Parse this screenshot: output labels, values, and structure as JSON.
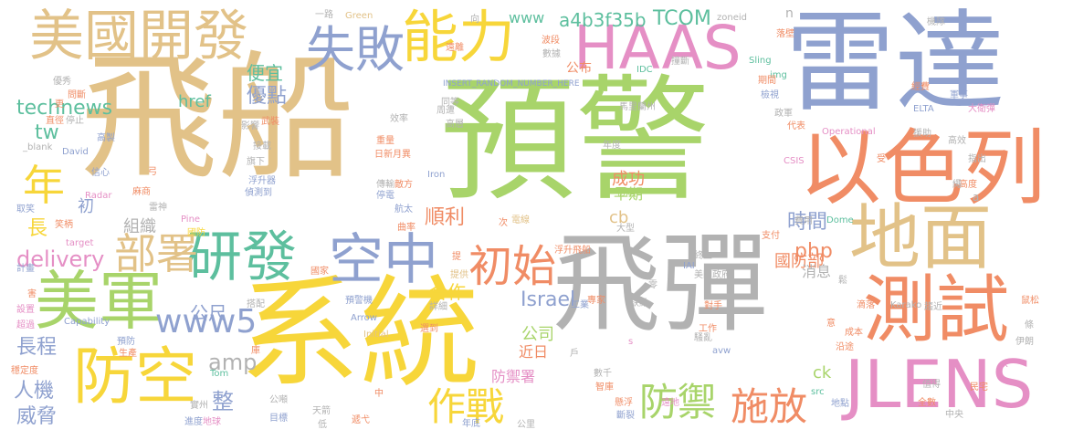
{
  "cloud": {
    "palette": {
      "green": "#a8d46a",
      "blue": "#8fa1cf",
      "orange": "#f08c65",
      "tan": "#e2c288",
      "gray": "#b2b2b2",
      "yellow": "#f7d63a",
      "pink": "#e58fc5",
      "teal": "#5dbf9e"
    },
    "words": [
      {
        "text": "飛船",
        "color": "tan"
      },
      {
        "text": "預警",
        "color": "green"
      },
      {
        "text": "雷達",
        "color": "blue"
      },
      {
        "text": "系統",
        "color": "yellow"
      },
      {
        "text": "飛彈",
        "color": "gray"
      },
      {
        "text": "以色列",
        "color": "orange"
      },
      {
        "text": "HAAS",
        "color": "pink"
      },
      {
        "text": "美國開發",
        "color": "tan"
      },
      {
        "text": "地面",
        "color": "tan"
      },
      {
        "text": "測試",
        "color": "orange"
      },
      {
        "text": "JLENS",
        "color": "pink"
      },
      {
        "text": "能力",
        "color": "yellow"
      },
      {
        "text": "失敗",
        "color": "blue"
      },
      {
        "text": "美軍",
        "color": "green"
      },
      {
        "text": "防空",
        "color": "yellow"
      },
      {
        "text": "研發",
        "color": "teal"
      },
      {
        "text": "空中",
        "color": "blue"
      },
      {
        "text": "部署",
        "color": "tan"
      },
      {
        "text": "初始",
        "color": "orange"
      },
      {
        "text": "年",
        "color": "yellow"
      },
      {
        "text": "作戰",
        "color": "yellow"
      },
      {
        "text": "防禦",
        "color": "green"
      },
      {
        "text": "施放",
        "color": "orange"
      },
      {
        "text": "www5",
        "color": "blue"
      },
      {
        "text": "technews",
        "color": "teal"
      },
      {
        "text": "tw",
        "color": "teal"
      },
      {
        "text": "delivery",
        "color": "pink"
      },
      {
        "text": "長程",
        "color": "blue"
      },
      {
        "text": "人機",
        "color": "blue"
      },
      {
        "text": "威脅",
        "color": "blue"
      },
      {
        "text": "長",
        "color": "yellow"
      },
      {
        "text": "初",
        "color": "blue"
      },
      {
        "text": "www",
        "color": "teal"
      },
      {
        "text": "a4b3f35b",
        "color": "teal"
      },
      {
        "text": "TCOM",
        "color": "teal"
      },
      {
        "text": "公布",
        "color": "orange"
      },
      {
        "text": "優點",
        "color": "blue"
      },
      {
        "text": "便宜",
        "color": "teal"
      },
      {
        "text": "href",
        "color": "teal"
      },
      {
        "text": "amp",
        "color": "gray"
      },
      {
        "text": "整",
        "color": "blue"
      },
      {
        "text": "公尺",
        "color": "blue"
      },
      {
        "text": "組織",
        "color": "gray"
      },
      {
        "text": "順利",
        "color": "orange"
      },
      {
        "text": "成功",
        "color": "orange"
      },
      {
        "text": "早期",
        "color": "green"
      },
      {
        "text": "cb",
        "color": "tan"
      },
      {
        "text": "時間",
        "color": "blue"
      },
      {
        "text": "php",
        "color": "orange"
      },
      {
        "text": "國防部",
        "color": "orange"
      },
      {
        "text": "消息",
        "color": "gray"
      },
      {
        "text": "Israel",
        "color": "blue"
      },
      {
        "text": "公司",
        "color": "green"
      },
      {
        "text": "近日",
        "color": "orange"
      },
      {
        "text": "合作",
        "color": "yellow"
      },
      {
        "text": "防禦署",
        "color": "pink"
      },
      {
        "text": "ck",
        "color": "green"
      },
      {
        "text": "n",
        "color": "gray"
      },
      {
        "text": "一路",
        "color": "gray"
      },
      {
        "text": "Green",
        "color": "tan"
      },
      {
        "text": "zoneid",
        "color": "gray"
      },
      {
        "text": "INSERT_RANDOM_NUMBER_HERE",
        "color": "blue"
      },
      {
        "text": "Operational",
        "color": "pink"
      },
      {
        "text": "ELTA",
        "color": "blue"
      },
      {
        "text": "Capability",
        "color": "blue"
      },
      {
        "text": "Radar",
        "color": "pink"
      },
      {
        "text": "Pine",
        "color": "pink"
      },
      {
        "text": "target",
        "color": "pink"
      },
      {
        "text": "Dome",
        "color": "teal"
      },
      {
        "text": "Karako",
        "color": "gray"
      },
      {
        "text": "Initial",
        "color": "tan"
      },
      {
        "text": "Arrow",
        "color": "blue"
      },
      {
        "text": "Tom",
        "color": "teal"
      },
      {
        "text": "David",
        "color": "blue"
      },
      {
        "text": "_blank",
        "color": "gray"
      },
      {
        "text": "Iron",
        "color": "blue"
      },
      {
        "text": "Sling",
        "color": "teal"
      },
      {
        "text": "img",
        "color": "teal"
      },
      {
        "text": "IDC",
        "color": "teal"
      },
      {
        "text": "CSIS",
        "color": "pink"
      },
      {
        "text": "IAI",
        "color": "blue"
      },
      {
        "text": "avw",
        "color": "blue"
      },
      {
        "text": "src",
        "color": "teal"
      },
      {
        "text": "a",
        "color": "gray"
      },
      {
        "text": "s",
        "color": "pink"
      },
      {
        "text": "x",
        "color": "pink"
      },
      {
        "text": "計畫",
        "color": "blue"
      },
      {
        "text": "設置",
        "color": "pink"
      },
      {
        "text": "超過",
        "color": "pink"
      },
      {
        "text": "穩定度",
        "color": "orange"
      },
      {
        "text": "實州",
        "color": "gray"
      },
      {
        "text": "進度",
        "color": "blue"
      },
      {
        "text": "地球",
        "color": "pink"
      },
      {
        "text": "預防",
        "color": "blue"
      },
      {
        "text": "生產",
        "color": "orange"
      },
      {
        "text": "庫",
        "color": "orange"
      },
      {
        "text": "取笑",
        "color": "blue"
      },
      {
        "text": "笑柄",
        "color": "orange"
      },
      {
        "text": "麻商",
        "color": "orange"
      },
      {
        "text": "雷神",
        "color": "gray"
      },
      {
        "text": "國防",
        "color": "yellow"
      },
      {
        "text": "搭配",
        "color": "gray"
      },
      {
        "text": "國家",
        "color": "orange"
      },
      {
        "text": "預警機",
        "color": "blue"
      },
      {
        "text": "公噸",
        "color": "gray"
      },
      {
        "text": "目標",
        "color": "blue"
      },
      {
        "text": "天箭",
        "color": "gray"
      },
      {
        "text": "低",
        "color": "gray"
      },
      {
        "text": "遞弋",
        "color": "orange"
      },
      {
        "text": "年底",
        "color": "blue"
      },
      {
        "text": "公里",
        "color": "gray"
      },
      {
        "text": "曲率",
        "color": "orange"
      },
      {
        "text": "詳細",
        "color": "gray"
      },
      {
        "text": "選到",
        "color": "orange"
      },
      {
        "text": "提供",
        "color": "tan"
      },
      {
        "text": "浮升飛船",
        "color": "orange"
      },
      {
        "text": "大型",
        "color": "gray"
      },
      {
        "text": "工業",
        "color": "blue"
      },
      {
        "text": "專家",
        "color": "orange"
      },
      {
        "text": "數千",
        "color": "gray"
      },
      {
        "text": "懸浮",
        "color": "orange"
      },
      {
        "text": "斷裂",
        "color": "blue"
      },
      {
        "text": "智庫",
        "color": "orange"
      },
      {
        "text": "戶",
        "color": "gray"
      },
      {
        "text": "遠離",
        "color": "orange"
      },
      {
        "text": "波段",
        "color": "orange"
      },
      {
        "text": "數據",
        "color": "gray"
      },
      {
        "text": "周遭",
        "color": "gray"
      },
      {
        "text": "同等",
        "color": "gray"
      },
      {
        "text": "高層",
        "color": "gray"
      },
      {
        "text": "馬里蘭州",
        "color": "gray"
      },
      {
        "text": "重量",
        "color": "orange"
      },
      {
        "text": "日新月異",
        "color": "orange"
      },
      {
        "text": "浮升器",
        "color": "blue"
      },
      {
        "text": "偵測到",
        "color": "blue"
      },
      {
        "text": "旗下",
        "color": "gray"
      },
      {
        "text": "接載",
        "color": "gray"
      },
      {
        "text": "傳輸",
        "color": "gray"
      },
      {
        "text": "停電",
        "color": "blue"
      },
      {
        "text": "敵方",
        "color": "orange"
      },
      {
        "text": "航太",
        "color": "blue"
      },
      {
        "text": "武裝",
        "color": "orange"
      },
      {
        "text": "影響",
        "color": "gray"
      },
      {
        "text": "效率",
        "color": "gray"
      },
      {
        "text": "停止",
        "color": "gray"
      },
      {
        "text": "直徑",
        "color": "orange"
      },
      {
        "text": "優秀",
        "color": "gray"
      },
      {
        "text": "問斷",
        "color": "orange"
      },
      {
        "text": "高度",
        "color": "orange"
      },
      {
        "text": "信心",
        "color": "blue"
      },
      {
        "text": "弓",
        "color": "orange"
      },
      {
        "text": "初期",
        "color": "green"
      },
      {
        "text": "高製",
        "color": "blue"
      },
      {
        "text": "年度",
        "color": "gray"
      },
      {
        "text": "代表",
        "color": "orange"
      },
      {
        "text": "政軍",
        "color": "gray"
      },
      {
        "text": "撞斷",
        "color": "gray"
      },
      {
        "text": "向",
        "color": "gray"
      },
      {
        "text": "檢視",
        "color": "blue"
      },
      {
        "text": "落壁",
        "color": "orange"
      },
      {
        "text": "期間",
        "color": "orange"
      },
      {
        "text": "經費",
        "color": "orange"
      },
      {
        "text": "機隊",
        "color": "gray"
      },
      {
        "text": "軍事",
        "color": "blue"
      },
      {
        "text": "大衛彈",
        "color": "pink"
      },
      {
        "text": "援助",
        "color": "gray"
      },
      {
        "text": "高效",
        "color": "gray"
      },
      {
        "text": "指出",
        "color": "gray"
      },
      {
        "text": "受",
        "color": "orange"
      },
      {
        "text": "費用",
        "color": "gray"
      },
      {
        "text": "支付",
        "color": "orange"
      },
      {
        "text": "終止",
        "color": "gray"
      },
      {
        "text": "美國政府",
        "color": "gray"
      },
      {
        "text": "缺點",
        "color": "gray"
      },
      {
        "text": "零",
        "color": "gray"
      },
      {
        "text": "對手",
        "color": "orange"
      },
      {
        "text": "工作",
        "color": "orange"
      },
      {
        "text": "騷亂",
        "color": "gray"
      },
      {
        "text": "遠地",
        "color": "pink"
      },
      {
        "text": "地點",
        "color": "blue"
      },
      {
        "text": "全數",
        "color": "orange"
      },
      {
        "text": "值得",
        "color": "gray"
      },
      {
        "text": "意",
        "color": "orange"
      },
      {
        "text": "鬆",
        "color": "gray"
      },
      {
        "text": "成本",
        "color": "orange"
      },
      {
        "text": "沿途",
        "color": "orange"
      },
      {
        "text": "滴落",
        "color": "orange"
      },
      {
        "text": "趨近",
        "color": "gray"
      },
      {
        "text": "民宅",
        "color": "orange"
      },
      {
        "text": "伊朗",
        "color": "gray"
      },
      {
        "text": "條",
        "color": "gray"
      },
      {
        "text": "鼠松",
        "color": "orange"
      },
      {
        "text": "提",
        "color": "orange"
      },
      {
        "text": "次",
        "color": "orange"
      },
      {
        "text": "電線",
        "color": "tan"
      },
      {
        "text": "中",
        "color": "orange"
      },
      {
        "text": "害",
        "color": "orange"
      },
      {
        "text": "更",
        "color": "orange"
      },
      {
        "text": "中央",
        "color": "gray"
      },
      {
        "text": "繩",
        "color": "gray"
      }
    ]
  }
}
